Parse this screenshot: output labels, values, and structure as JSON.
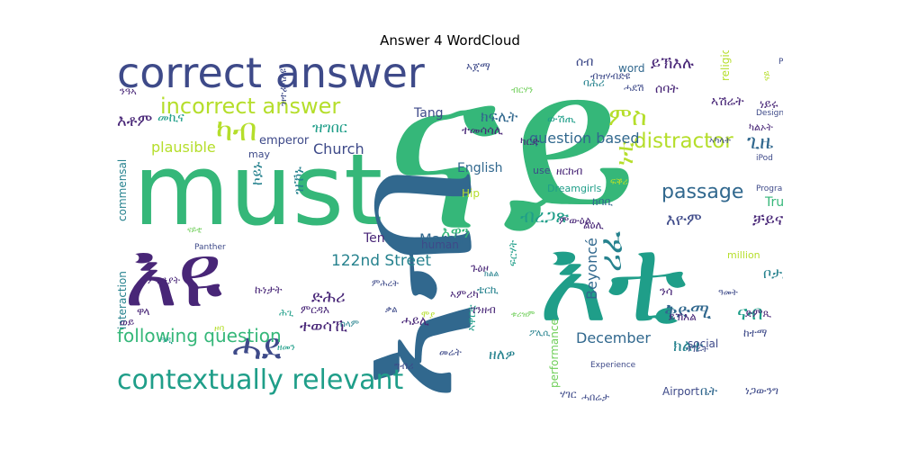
{
  "title": "Answer 4 WordCloud",
  "colors": {
    "purple": "#482677",
    "deep_purple": "#440154",
    "indigo": "#3e4a89",
    "blue": "#31688e",
    "teal_blue": "#26828e",
    "teal": "#1f9e89",
    "green": "#35b779",
    "light_green": "#6ece58",
    "yellow_green": "#b5de2b",
    "yellow": "#fde725"
  },
  "words": [
    {
      "text": "ናይ",
      "color": "#35b779",
      "vertical": false
    },
    {
      "text": "must",
      "color": "#35b779",
      "vertical": false
    },
    {
      "text": "እዩ",
      "color": "#482677",
      "vertical": false
    },
    {
      "text": "ኣብ",
      "color": "#31688e",
      "vertical": true
    },
    {
      "text": "እቲ",
      "color": "#1f9e89",
      "vertical": false
    },
    {
      "text": "correct answer",
      "color": "#3e4a89",
      "vertical": false
    },
    {
      "text": "contextually relevant",
      "color": "#1f9e89",
      "vertical": false
    },
    {
      "text": "incorrect answer",
      "color": "#b5de2b",
      "vertical": false
    },
    {
      "text": "ካብ",
      "color": "#b5de2b",
      "vertical": false
    },
    {
      "text": "ሓደ",
      "color": "#3e4a89",
      "vertical": false
    },
    {
      "text": "distractor",
      "color": "#b5de2b",
      "vertical": false
    },
    {
      "text": "passage",
      "color": "#31688e",
      "vertical": false
    },
    {
      "text": "ምስ",
      "color": "#b5de2b",
      "vertical": false
    },
    {
      "text": "ነቲ",
      "color": "#b5de2b",
      "vertical": true
    },
    {
      "text": "ዝኾኑ",
      "color": "#26828e",
      "vertical": true
    },
    {
      "text": "ኮይኑ",
      "color": "#26828e",
      "vertical": true
    },
    {
      "text": "ብረጋጽ",
      "color": "#1f9e89",
      "vertical": false
    },
    {
      "text": "ሪፈ",
      "color": "#26828e",
      "vertical": true
    },
    {
      "text": "ጊዜ",
      "color": "#31688e",
      "vertical": false
    },
    {
      "text": "እዮም",
      "color": "#3e4a89",
      "vertical": false
    },
    {
      "text": "True",
      "color": "#35b779",
      "vertical": false
    },
    {
      "text": "ቻይና",
      "color": "#482677",
      "vertical": false
    },
    {
      "text": "ፍርሃት",
      "color": "#1f9e89",
      "vertical": true
    },
    {
      "text": "ቦታታት",
      "color": "#26828e",
      "vertical": false
    },
    {
      "text": "ቅድሚ",
      "color": "#31688e",
      "vertical": false
    },
    {
      "text": "ናብ",
      "color": "#1f9e89",
      "vertical": false
    },
    {
      "text": "ክልተ",
      "color": "#26828e",
      "vertical": false
    },
    {
      "text": "December",
      "color": "#31688e",
      "vertical": false
    },
    {
      "text": "ዘለዎ",
      "color": "#26828e",
      "vertical": false
    },
    {
      "text": "እዋን",
      "color": "#35b779",
      "vertical": false
    },
    {
      "text": "March",
      "color": "#31688e",
      "vertical": false
    },
    {
      "text": "122nd Street",
      "color": "#26828e",
      "vertical": false
    },
    {
      "text": "ድሕሪ",
      "color": "#482677",
      "vertical": false
    },
    {
      "text": "ተወሳኺ",
      "color": "#482677",
      "vertical": false
    },
    {
      "text": "following question",
      "color": "#35b779",
      "vertical": false
    },
    {
      "text": "Beyoncé",
      "color": "#31688e",
      "vertical": true
    },
    {
      "text": "question based",
      "color": "#31688e",
      "vertical": false
    },
    {
      "text": "English",
      "color": "#31688e",
      "vertical": false
    },
    {
      "text": "Tang",
      "color": "#3e4a89",
      "vertical": false
    },
    {
      "text": "Church",
      "color": "#3e4a89",
      "vertical": false
    },
    {
      "text": "plausible",
      "color": "#b5de2b",
      "vertical": false
    },
    {
      "text": "emperor",
      "color": "#3e4a89",
      "vertical": false
    },
    {
      "text": "ክፍሊት",
      "color": "#31688e",
      "vertical": false
    },
    {
      "text": "ዝግበር",
      "color": "#1f9e89",
      "vertical": false
    },
    {
      "text": "ይኽእሉ",
      "color": "#482677",
      "vertical": false
    },
    {
      "text": "ሰባት",
      "color": "#482677",
      "vertical": false
    },
    {
      "text": "እቶም",
      "color": "#482677",
      "vertical": false
    },
    {
      "text": "መኪና",
      "color": "#1f9e89",
      "vertical": false
    },
    {
      "text": "ዝተፈላለዩ",
      "color": "#3e4a89",
      "vertical": true
    },
    {
      "text": "ንዓኣ",
      "color": "#482677",
      "vertical": false
    },
    {
      "text": "ናይ",
      "color": "#b5de2b",
      "vertical": true
    },
    {
      "text": "ሰብ",
      "color": "#3e4a89",
      "vertical": false
    },
    {
      "text": "word",
      "color": "#31688e",
      "vertical": false
    },
    {
      "text": "ኣጀማ",
      "color": "#3e4a89",
      "vertical": false
    },
    {
      "text": "ሓደሽ",
      "color": "#3e4a89",
      "vertical": false
    },
    {
      "text": "ብዝሃብድዩ",
      "color": "#3e4a89",
      "vertical": false
    },
    {
      "text": "ኣምሪካ",
      "color": "#482677",
      "vertical": false
    },
    {
      "text": "ንሳ",
      "color": "#482677",
      "vertical": false
    },
    {
      "text": "ድምጺ",
      "color": "#482677",
      "vertical": false
    },
    {
      "text": "ይኽእል",
      "color": "#482677",
      "vertical": false
    },
    {
      "text": "ካልኦት",
      "color": "#482677",
      "vertical": false
    },
    {
      "text": "ኣካላት",
      "color": "#3e4a89",
      "vertical": false
    },
    {
      "text": "ነይሩ",
      "color": "#482677",
      "vertical": false
    },
    {
      "text": "religious",
      "color": "#b5de2b",
      "vertical": true
    },
    {
      "text": "ኣሽሬት",
      "color": "#482677",
      "vertical": false
    },
    {
      "text": "ውሽጢ",
      "color": "#1f9e89",
      "vertical": false
    },
    {
      "text": "ተመሳሳሊ",
      "color": "#482677",
      "vertical": false
    },
    {
      "text": "ካርድ",
      "color": "#482677",
      "vertical": false
    },
    {
      "text": "ምውዕል",
      "color": "#482677",
      "vertical": false
    },
    {
      "text": "ልዕሊ",
      "color": "#482677",
      "vertical": false
    },
    {
      "text": "ከባቢ",
      "color": "#31688e",
      "vertical": false
    },
    {
      "text": "ዘርከብ",
      "color": "#482677",
      "vertical": false
    },
    {
      "text": "Dreamgirls",
      "color": "#1f9e89",
      "vertical": false
    },
    {
      "text": "use",
      "color": "#3e4a89",
      "vertical": false
    },
    {
      "text": "Hip",
      "color": "#b5de2b",
      "vertical": false
    },
    {
      "text": "human",
      "color": "#3e4a89",
      "vertical": false
    },
    {
      "text": "Ten",
      "color": "#482677",
      "vertical": false
    },
    {
      "text": "social",
      "color": "#3e4a89",
      "vertical": false
    },
    {
      "text": "Airport",
      "color": "#3e4a89",
      "vertical": false
    },
    {
      "text": "performance",
      "color": "#6ece58",
      "vertical": true
    },
    {
      "text": "commensal",
      "color": "#26828e",
      "vertical": true
    },
    {
      "text": "interaction",
      "color": "#26828e",
      "vertical": true
    },
    {
      "text": "may",
      "color": "#3e4a89",
      "vertical": false
    },
    {
      "text": "Panther",
      "color": "#3e4a89",
      "vertical": false
    },
    {
      "text": "million",
      "color": "#b5de2b",
      "vertical": false
    },
    {
      "text": "Program",
      "color": "#3e4a89",
      "vertical": false
    },
    {
      "text": "Design",
      "color": "#3e4a89",
      "vertical": false
    },
    {
      "text": "Pink",
      "color": "#3e4a89",
      "vertical": false
    },
    {
      "text": "iPod",
      "color": "#3e4a89",
      "vertical": false
    },
    {
      "text": "Experience",
      "color": "#3e4a89",
      "vertical": false
    },
    {
      "text": "ቤት",
      "color": "#31688e",
      "vertical": false
    },
    {
      "text": "ነጋውንግ",
      "color": "#3e4a89",
      "vertical": false
    },
    {
      "text": "ሃገር",
      "color": "#3e4a89",
      "vertical": false
    },
    {
      "text": "ከተማ",
      "color": "#3e4a89",
      "vertical": false
    },
    {
      "text": "ሓበሬታ",
      "color": "#3e4a89",
      "vertical": false
    },
    {
      "text": "ግብሪ",
      "color": "#3e4a89",
      "vertical": false
    },
    {
      "text": "መሬት",
      "color": "#3e4a89",
      "vertical": false
    },
    {
      "text": "ዞባ",
      "color": "#b5de2b",
      "vertical": false
    },
    {
      "text": "ሕጊ",
      "color": "#1f9e89",
      "vertical": false
    },
    {
      "text": "ዓዲ",
      "color": "#1f9e89",
      "vertical": false
    },
    {
      "text": "ዋላ",
      "color": "#482677",
      "vertical": false
    },
    {
      "text": "ወይ",
      "color": "#482677",
      "vertical": false
    },
    {
      "text": "ምርዳእ",
      "color": "#482677",
      "vertical": false
    },
    {
      "text": "ኣዋርቲ",
      "color": "#1f9e89",
      "vertical": true
    },
    {
      "text": "ቱሪዝም",
      "color": "#6ece58",
      "vertical": false
    },
    {
      "text": "ክልል",
      "color": "#26828e",
      "vertical": false
    },
    {
      "text": "ጉዕዞ",
      "color": "#482677",
      "vertical": false
    },
    {
      "text": "ገንዘብ",
      "color": "#482677",
      "vertical": false
    },
    {
      "text": "ቴርኪ",
      "color": "#26828e",
      "vertical": false
    },
    {
      "text": "ሃገራት",
      "color": "#3e4a89",
      "vertical": false
    },
    {
      "text": "ፖሊሲ",
      "color": "#26828e",
      "vertical": false
    },
    {
      "text": "ቃል",
      "color": "#3e4a89",
      "vertical": false
    },
    {
      "text": "ሞያ",
      "color": "#b5de2b",
      "vertical": false
    },
    {
      "text": "ዘመን",
      "color": "#1f9e89",
      "vertical": false
    },
    {
      "text": "ፍቕሪ",
      "color": "#b5de2b",
      "vertical": false
    },
    {
      "text": "ሰላም",
      "color": "#26828e",
      "vertical": false
    },
    {
      "text": "ምሕረት",
      "color": "#3e4a89",
      "vertical": false
    },
    {
      "text": "ባሕሪ",
      "color": "#26828e",
      "vertical": false
    },
    {
      "text": "ዓመት",
      "color": "#3e4a89",
      "vertical": false
    },
    {
      "text": "ብርሃን",
      "color": "#6ece58",
      "vertical": false
    },
    {
      "text": "ሓይሊ",
      "color": "#482677",
      "vertical": false
    },
    {
      "text": "ናይቲ",
      "color": "#6ece58",
      "vertical": false
    },
    {
      "text": "ኩነታት",
      "color": "#482677",
      "vertical": false
    },
    {
      "text": "ምክንያት",
      "color": "#482677",
      "vertical": false
    }
  ]
}
